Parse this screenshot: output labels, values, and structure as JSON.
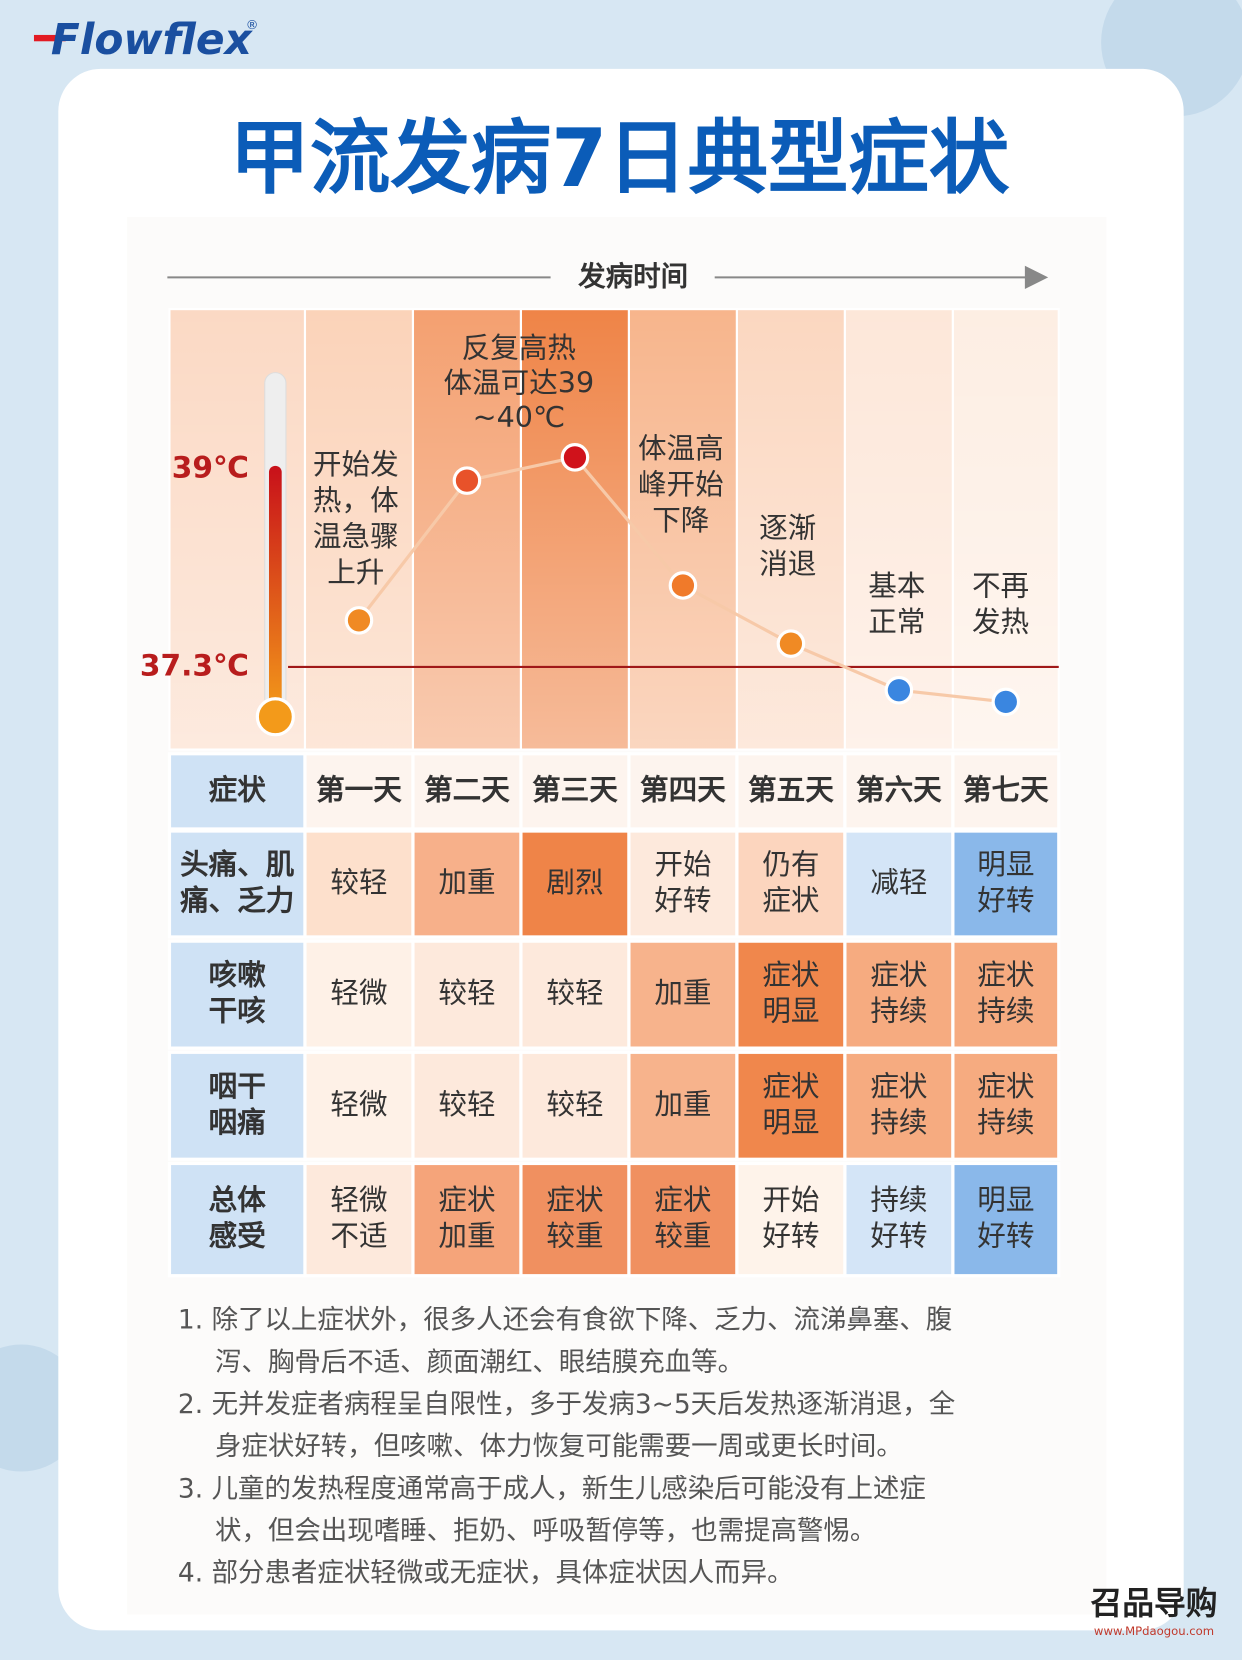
{
  "brand": {
    "name": "Flowflex",
    "mark": "®"
  },
  "title": "甲流发病7日典型症状",
  "timeline_label": "发病时间",
  "temperature_scale": {
    "ylim": [
      36.8,
      39.8
    ],
    "yticks": [
      {
        "value": 39,
        "label": "39℃"
      },
      {
        "value": 37.3,
        "label": "37.3℃"
      }
    ]
  },
  "stages": [
    {
      "description": [
        "开始发",
        "热，体",
        "温急骤",
        "上升"
      ],
      "temperature": 37.7,
      "color": "#f08a24"
    },
    {
      "description": [
        "反复高热",
        "体温可达39",
        "~40℃"
      ],
      "temperature": 38.9,
      "color": "#e8522a"
    },
    {
      "description": [],
      "temperature": 39.1,
      "color": "#d0121b"
    },
    {
      "description": [
        "体温高",
        "峰开始",
        "下降"
      ],
      "temperature": 38.0,
      "color": "#f07a2a"
    },
    {
      "description": [
        "逐渐",
        "消退"
      ],
      "temperature": 37.5,
      "color": "#f08a24"
    },
    {
      "description": [
        "基本",
        "正常"
      ],
      "temperature": 37.1,
      "color": "#3a86e0"
    },
    {
      "description": [
        "不再",
        "发热"
      ],
      "temperature": 37.0,
      "color": "#3a86e0"
    }
  ],
  "table": {
    "header": [
      "症状",
      "第一天",
      "第二天",
      "第三天",
      "第四天",
      "第五天",
      "第六天",
      "第七天"
    ],
    "rows": [
      {
        "label": [
          "头痛、肌",
          "痛、乏力"
        ],
        "cells": [
          {
            "text": [
              "较轻"
            ],
            "color": "#fde0cc"
          },
          {
            "text": [
              "加重"
            ],
            "color": "#f7b08a"
          },
          {
            "text": [
              "剧烈"
            ],
            "color": "#ef8448"
          },
          {
            "text": [
              "开始",
              "好转"
            ],
            "color": "#fde9dc"
          },
          {
            "text": [
              "仍有",
              "症状"
            ],
            "color": "#fcd5be"
          },
          {
            "text": [
              "减轻"
            ],
            "color": "#d4e5f7"
          },
          {
            "text": [
              "明显",
              "好转"
            ],
            "color": "#8ab8ea"
          }
        ]
      },
      {
        "label": [
          "咳嗽",
          "干咳"
        ],
        "cells": [
          {
            "text": [
              "轻微"
            ],
            "color": "#fef1e7"
          },
          {
            "text": [
              "较轻"
            ],
            "color": "#fde9dc"
          },
          {
            "text": [
              "较轻"
            ],
            "color": "#fde9dc"
          },
          {
            "text": [
              "加重"
            ],
            "color": "#f7b38c"
          },
          {
            "text": [
              "症状",
              "明显"
            ],
            "color": "#f0874c"
          },
          {
            "text": [
              "症状",
              "持续"
            ],
            "color": "#f6ab80"
          },
          {
            "text": [
              "症状",
              "持续"
            ],
            "color": "#f6ab80"
          }
        ]
      },
      {
        "label": [
          "咽干",
          "咽痛"
        ],
        "cells": [
          {
            "text": [
              "轻微"
            ],
            "color": "#fef1e7"
          },
          {
            "text": [
              "较轻"
            ],
            "color": "#fde9dc"
          },
          {
            "text": [
              "较轻"
            ],
            "color": "#fde9dc"
          },
          {
            "text": [
              "加重"
            ],
            "color": "#f7b38c"
          },
          {
            "text": [
              "症状",
              "明显"
            ],
            "color": "#f0874c"
          },
          {
            "text": [
              "症状",
              "持续"
            ],
            "color": "#f6ab80"
          },
          {
            "text": [
              "症状",
              "持续"
            ],
            "color": "#f6ab80"
          }
        ]
      },
      {
        "label": [
          "总体",
          "感受"
        ],
        "cells": [
          {
            "text": [
              "轻微",
              "不适"
            ],
            "color": "#fde9dc"
          },
          {
            "text": [
              "症状",
              "加重"
            ],
            "color": "#f5a47a"
          },
          {
            "text": [
              "症状",
              "较重"
            ],
            "color": "#f09060"
          },
          {
            "text": [
              "症状",
              "较重"
            ],
            "color": "#f09060"
          },
          {
            "text": [
              "开始",
              "好转"
            ],
            "color": "#fef3ea"
          },
          {
            "text": [
              "持续",
              "好转"
            ],
            "color": "#d4e5f7"
          },
          {
            "text": [
              "明显",
              "好转"
            ],
            "color": "#8ab8ea"
          }
        ]
      }
    ]
  },
  "notes": [
    [
      "1. 除了以上症状外，很多人还会有食欲下降、乏力、流涕鼻塞、腹",
      "泻、胸骨后不适、颜面潮红、眼结膜充血等。"
    ],
    [
      "2. 无并发症者病程呈自限性，多于发病3~5天后发热逐渐消退，全",
      "身症状好转，但咳嗽、体力恢复可能需要一周或更长时间。"
    ],
    [
      "3. 儿童的发热程度通常高于成人，新生儿感染后可能没有上述症",
      "状，但会出现嗜睡、拒奶、呼吸暂停等，也需提高警惕。"
    ],
    [
      "4. 部分患者症状轻微或无症状，具体症状因人而异。"
    ]
  ],
  "watermark": {
    "name": "召品导购",
    "url": "www.MPdaogou.com"
  }
}
